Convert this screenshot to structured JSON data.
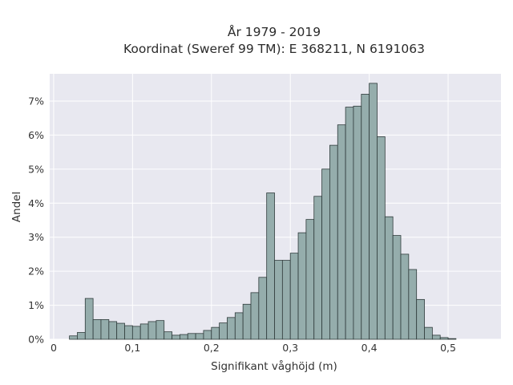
{
  "chart_data": {
    "type": "bar",
    "title_line1": "År 1979 - 2019",
    "title_line2": "Koordinat (Sweref 99 TM): E 368211, N 6191063",
    "xlabel": "Signifikant våghöjd (m)",
    "ylabel": "Andel",
    "xlim": [
      -0.005,
      0.567
    ],
    "ylim": [
      0,
      7.8
    ],
    "x_ticks": [
      {
        "value": 0,
        "label": "0"
      },
      {
        "value": 0.1,
        "label": "0,1"
      },
      {
        "value": 0.2,
        "label": "0,2"
      },
      {
        "value": 0.3,
        "label": "0,3"
      },
      {
        "value": 0.4,
        "label": "0,4"
      },
      {
        "value": 0.5,
        "label": "0,5"
      }
    ],
    "y_ticks": [
      {
        "value": 0,
        "label": "0%"
      },
      {
        "value": 1,
        "label": "1%"
      },
      {
        "value": 2,
        "label": "2%"
      },
      {
        "value": 3,
        "label": "3%"
      },
      {
        "value": 4,
        "label": "4%"
      },
      {
        "value": 5,
        "label": "5%"
      },
      {
        "value": 6,
        "label": "6%"
      },
      {
        "value": 7,
        "label": "7%"
      }
    ],
    "bin_start": 0.02,
    "bin_width": 0.01,
    "values": [
      0.1,
      0.2,
      1.2,
      0.58,
      0.58,
      0.52,
      0.47,
      0.4,
      0.38,
      0.45,
      0.52,
      0.55,
      0.22,
      0.12,
      0.14,
      0.17,
      0.17,
      0.26,
      0.35,
      0.48,
      0.64,
      0.78,
      1.03,
      1.37,
      1.82,
      4.3,
      2.32,
      2.32,
      2.53,
      3.13,
      3.52,
      4.2,
      5.0,
      5.7,
      6.3,
      6.82,
      6.85,
      7.2,
      7.52,
      5.95,
      3.6,
      3.05,
      2.5,
      2.05,
      1.17,
      0.35,
      0.12,
      0.05,
      0.02
    ],
    "grid": true,
    "colors": {
      "plot_background": "#e8e8f0",
      "grid": "#ffffff",
      "bar_fill": "#95adac",
      "bar_stroke": "#2f3b3b"
    }
  }
}
